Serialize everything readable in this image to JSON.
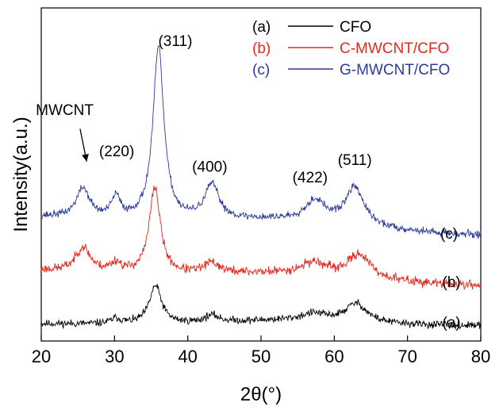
{
  "chart_data": {
    "type": "line",
    "title": "",
    "xlabel": "2θ(°)",
    "ylabel": "Intensity(a.u.)",
    "xlim": [
      20,
      80
    ],
    "xticks": [
      20,
      30,
      40,
      50,
      60,
      70,
      80
    ],
    "y_tick_labels_shown": false,
    "grid": false,
    "legend_position": "top-right",
    "series": [
      {
        "id": "a",
        "name": "CFO",
        "legend_letter": "(a)",
        "curve_label": "(a)",
        "color": "#000000",
        "baseline": 0.1,
        "noise": 0.018,
        "seed": 11,
        "peaks": [
          {
            "x": 30.2,
            "h": 0.03,
            "w": 0.8
          },
          {
            "x": 35.6,
            "h": 0.22,
            "w": 1.0
          },
          {
            "x": 43.3,
            "h": 0.04,
            "w": 1.2
          },
          {
            "x": 57.2,
            "h": 0.04,
            "w": 2.0
          },
          {
            "x": 63.0,
            "h": 0.11,
            "w": 1.8
          }
        ],
        "bump": {
          "x": 54,
          "h": 0.025,
          "w": 12
        },
        "slope": -0.0002
      },
      {
        "id": "b",
        "name": "C-MWCNT/CFO",
        "legend_letter": "(b)",
        "curve_label": "(b)",
        "color": "#e8271c",
        "baseline": 0.41,
        "noise": 0.022,
        "seed": 23,
        "peaks": [
          {
            "x": 25.7,
            "h": 0.14,
            "w": 1.2
          },
          {
            "x": 30.2,
            "h": 0.05,
            "w": 0.8
          },
          {
            "x": 35.5,
            "h": 0.5,
            "w": 0.9
          },
          {
            "x": 43.3,
            "h": 0.06,
            "w": 1.3
          },
          {
            "x": 57.2,
            "h": 0.07,
            "w": 2.0
          },
          {
            "x": 63.4,
            "h": 0.14,
            "w": 1.8
          }
        ],
        "bump": {
          "x": 54,
          "h": 0.03,
          "w": 12
        },
        "slope": -0.0015
      },
      {
        "id": "c",
        "name": "G-MWCNT/CFO",
        "legend_letter": "(c)",
        "curve_label": "(c)",
        "color": "#2b3a9c",
        "baseline": 0.72,
        "noise": 0.018,
        "seed": 37,
        "peaks": [
          {
            "x": 25.7,
            "h": 0.17,
            "w": 1.1
          },
          {
            "x": 30.2,
            "h": 0.12,
            "w": 0.7
          },
          {
            "x": 36.0,
            "h": 1.0,
            "w": 0.9
          },
          {
            "x": 43.3,
            "h": 0.2,
            "w": 1.2
          },
          {
            "x": 57.4,
            "h": 0.12,
            "w": 1.6
          },
          {
            "x": 62.8,
            "h": 0.22,
            "w": 1.5
          }
        ],
        "bump": {
          "x": 54,
          "h": 0.04,
          "w": 12
        },
        "slope": -0.0018
      }
    ],
    "annotations": [
      {
        "text": "(311)",
        "x": 38.3,
        "y": 1.71
      },
      {
        "text": "(220)",
        "x": 30.3,
        "y": 1.07
      },
      {
        "text": "(400)",
        "x": 43.0,
        "y": 0.98
      },
      {
        "text": "(422)",
        "x": 56.7,
        "y": 0.92
      },
      {
        "text": "(511)",
        "x": 62.8,
        "y": 1.02
      },
      {
        "text": "MWCNT",
        "x": 23.2,
        "y": 1.31
      }
    ],
    "arrow": {
      "from_x": 25.3,
      "from_y": 1.23,
      "to_x": 26.2,
      "to_y": 1.04
    }
  }
}
